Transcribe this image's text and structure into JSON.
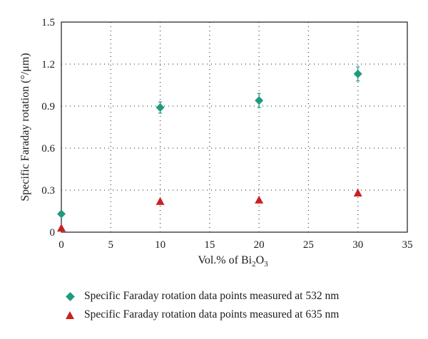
{
  "chart_data": {
    "type": "scatter",
    "ylabel": "Specific Faraday rotation (°/μm)",
    "xlabel": {
      "prefix": "Vol.% of Bi",
      "sub1": "2",
      "mid": "O",
      "sub2": "3"
    },
    "xlim": [
      0,
      35
    ],
    "ylim": [
      0,
      1.5
    ],
    "x_ticks": [
      "0",
      "5",
      "10",
      "15",
      "20",
      "25",
      "30",
      "35"
    ],
    "y_ticks": [
      "0",
      "0.3",
      "0.6",
      "0.9",
      "1.2",
      "1.5"
    ],
    "grid": true,
    "legend_position": "bottom",
    "series": [
      {
        "name": "Specific Faraday rotation data points measured at 532 nm",
        "marker": "diamond",
        "color": "#1f9a7f",
        "points": [
          {
            "x": 0,
            "y": 0.13,
            "err": 0
          },
          {
            "x": 10,
            "y": 0.89,
            "err": 0.04
          },
          {
            "x": 20,
            "y": 0.94,
            "err": 0.05
          },
          {
            "x": 30,
            "y": 1.13,
            "err": 0.05
          }
        ]
      },
      {
        "name": "Specific Faraday rotation data points measured at 635 nm",
        "marker": "triangle",
        "color": "#cc1f1f",
        "points": [
          {
            "x": 0,
            "y": 0.03,
            "err": 0
          },
          {
            "x": 10,
            "y": 0.22,
            "err": 0
          },
          {
            "x": 20,
            "y": 0.23,
            "err": 0
          },
          {
            "x": 30,
            "y": 0.28,
            "err": 0
          }
        ]
      }
    ]
  }
}
